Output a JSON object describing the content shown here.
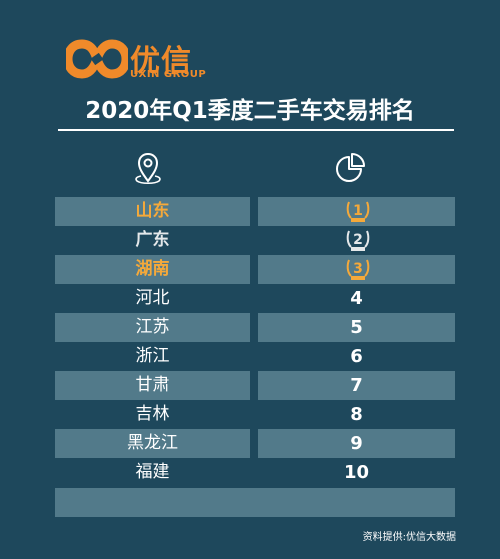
{
  "brand": {
    "name_cn": "优信",
    "name_en": "UXIN GROUP",
    "color": "#f08a2a"
  },
  "title": "2020年Q1季度二手车交易排名",
  "header_icons": {
    "location": "location-pin-icon",
    "pie": "pie-chart-icon"
  },
  "colors": {
    "background": "#1e485c",
    "row_shade": "#527a8a",
    "gold": "#f5a93a",
    "silver": "#e4e8ea"
  },
  "rows": [
    {
      "province": "山东",
      "rank": "1",
      "medal": "gold"
    },
    {
      "province": "广东",
      "rank": "2",
      "medal": "silver"
    },
    {
      "province": "湖南",
      "rank": "3",
      "medal": "bronze"
    },
    {
      "province": "河北",
      "rank": "4"
    },
    {
      "province": "江苏",
      "rank": "5"
    },
    {
      "province": "浙江",
      "rank": "6"
    },
    {
      "province": "甘肃",
      "rank": "7"
    },
    {
      "province": "吉林",
      "rank": "8"
    },
    {
      "province": "黑龙江",
      "rank": "9"
    },
    {
      "province": "福建",
      "rank": "10"
    }
  ],
  "source": "资料提供:优信大数据"
}
